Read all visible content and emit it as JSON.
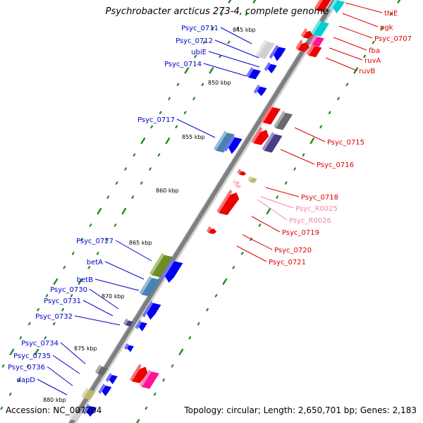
{
  "title": "Psychrobacter arcticus 273-4, complete genome",
  "accession": "Accession: NC_007204",
  "topology": "Topology: circular; Length: 2,650,701 bp; Genes: 2,183",
  "colors": {
    "backbone": "#7f7f7f",
    "tick_dots": "#1f8a1f",
    "left_labels": "#0000cc",
    "right_labels": "#dd0000",
    "rna_labels": "#ee88aa"
  },
  "kbp_ticks": [
    "845 kbp",
    "850 kbp",
    "855 kbp",
    "860 kbp",
    "865 kbp",
    "870 kbp",
    "875 kbp",
    "880 kbp"
  ],
  "left_genes": [
    {
      "name": "Psyc_0711",
      "color": "#d0d0d0"
    },
    {
      "name": "Psyc_0712",
      "color": "#0000ee"
    },
    {
      "name": "ubiE",
      "color": "#0000ee"
    },
    {
      "name": "Psyc_0714",
      "color": "#0000ee"
    },
    {
      "name": "Psyc_0717",
      "color": "#4682b4"
    },
    {
      "name": "Psyc_0727",
      "color": "#6b8e23"
    },
    {
      "name": "betA",
      "color": "#0000ee"
    },
    {
      "name": "betB",
      "color": "#4682b4"
    },
    {
      "name": "Psyc_0730",
      "color": "#0000ee"
    },
    {
      "name": "Psyc_0731",
      "color": "#0000ee"
    },
    {
      "name": "Psyc_0732",
      "color": "#483d8b"
    },
    {
      "name": "Psyc_0734",
      "color": "#0000ee"
    },
    {
      "name": "Psyc_0735",
      "color": "#696969"
    },
    {
      "name": "Psyc_0736",
      "color": "#0000ee"
    },
    {
      "name": "dapD",
      "color": "#bdb76b"
    }
  ],
  "right_genes": [
    {
      "name": "thiE",
      "color": "#ee0000",
      "rna": false
    },
    {
      "name": "pgk",
      "color": "#00ced1",
      "rna": false
    },
    {
      "name": "Psyc_0707",
      "color": "#ee0000",
      "rna": false
    },
    {
      "name": "fba",
      "color": "#ee0000",
      "rna": false
    },
    {
      "name": "ruvA",
      "color": "#ff1493",
      "rna": false
    },
    {
      "name": "ruvB",
      "color": "#ee0000",
      "rna": false
    },
    {
      "name": "Psyc_0715",
      "color": "#ee0000",
      "rna": false
    },
    {
      "name": "Psyc_0716",
      "color": "#483d8b",
      "rna": false
    },
    {
      "name": "Psyc_0718",
      "color": "#ee0000",
      "rna": false
    },
    {
      "name": "Psyc_R0025",
      "color": "#ffb6c1",
      "rna": true
    },
    {
      "name": "Psyc_R0026",
      "color": "#ffb6c1",
      "rna": true
    },
    {
      "name": "Psyc_0719",
      "color": "#ee0000",
      "rna": false
    },
    {
      "name": "Psyc_0720",
      "color": "#ee0000",
      "rna": false
    },
    {
      "name": "Psyc_0721",
      "color": "#ee0000",
      "rna": false
    }
  ]
}
